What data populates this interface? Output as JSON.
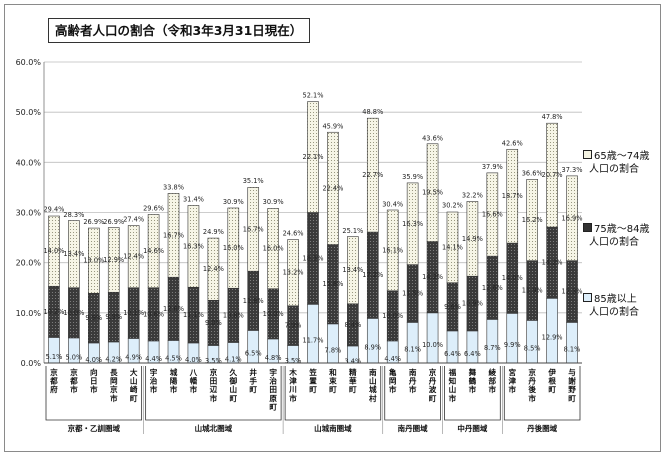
{
  "chart_data": {
    "type": "bar",
    "stacked": true,
    "title": "高齢者人口の割合（令和3年3月31日現在）",
    "ylim": [
      0,
      60
    ],
    "yticks": [
      "0.0%",
      "10.0%",
      "20.0%",
      "30.0%",
      "40.0%",
      "50.0%",
      "60.0%"
    ],
    "grid": true,
    "legend_position": "right",
    "categories": [
      "京都府",
      "京都市",
      "向日市",
      "長岡京市",
      "大山崎町",
      "宇治市",
      "城陽市",
      "八幡市",
      "京田辺市",
      "久御山町",
      "井手町",
      "宇治田原町",
      "木津川市",
      "笠置町",
      "和束町",
      "精華町",
      "南山城村",
      "亀岡市",
      "南丹市",
      "京丹波町",
      "福知山市",
      "舞鶴市",
      "綾部市",
      "宮津市",
      "京丹後市",
      "伊根町",
      "与謝野町"
    ],
    "series": [
      {
        "name": "85歳以上 人口の割合",
        "values": [
          5.1,
          5.0,
          4.0,
          4.2,
          4.9,
          4.4,
          4.5,
          4.0,
          3.5,
          4.1,
          6.5,
          4.8,
          3.5,
          11.7,
          7.8,
          3.4,
          8.9,
          4.4,
          8.1,
          10.0,
          6.4,
          6.4,
          8.7,
          9.9,
          8.5,
          12.9,
          8.1
        ]
      },
      {
        "name": "75歳～84歳 人口の割合",
        "values": [
          10.2,
          10.0,
          9.9,
          9.9,
          10.1,
          10.6,
          12.6,
          11.1,
          9.0,
          10.8,
          11.8,
          10.0,
          7.9,
          18.3,
          15.8,
          8.4,
          17.2,
          10.0,
          11.5,
          14.2,
          9.6,
          10.9,
          12.6,
          14.0,
          11.9,
          14.2,
          12.3
        ]
      },
      {
        "name": "65歳～74歳 人口の割合",
        "values": [
          14.0,
          13.4,
          13.0,
          12.9,
          12.4,
          14.6,
          16.7,
          16.3,
          12.4,
          16.0,
          16.7,
          16.0,
          13.2,
          22.1,
          22.4,
          13.4,
          22.7,
          16.1,
          16.3,
          19.5,
          14.1,
          14.9,
          16.6,
          18.7,
          16.2,
          20.7,
          16.9
        ]
      }
    ],
    "totals": [
      29.4,
      28.3,
      26.9,
      26.9,
      27.4,
      29.6,
      33.8,
      31.4,
      24.9,
      30.9,
      35.1,
      30.9,
      24.6,
      52.1,
      45.9,
      25.1,
      48.8,
      30.4,
      35.9,
      43.6,
      30.2,
      32.2,
      37.9,
      42.6,
      36.6,
      47.8,
      37.3
    ],
    "groups": [
      {
        "label": "京都・乙訓圏域",
        "start": 0,
        "end": 4
      },
      {
        "label": "山城北圏域",
        "start": 5,
        "end": 11
      },
      {
        "label": "山城南圏域",
        "start": 12,
        "end": 16
      },
      {
        "label": "南丹圏域",
        "start": 17,
        "end": 19
      },
      {
        "label": "中丹圏域",
        "start": 20,
        "end": 22
      },
      {
        "label": "丹後圏域",
        "start": 23,
        "end": 26
      }
    ]
  },
  "legend": [
    {
      "label_line1": "65歳～74歳",
      "label_line2": "人口の割合"
    },
    {
      "label_line1": "75歳～84歳",
      "label_line2": "人口の割合"
    },
    {
      "label_line1": "85歳以上",
      "label_line2": "人口の割合"
    }
  ],
  "colors": {
    "s85": "#ddeefa",
    "s75": "#3d3d3d",
    "s65": "#f4f3e2",
    "grid": "#bdbdbd"
  }
}
